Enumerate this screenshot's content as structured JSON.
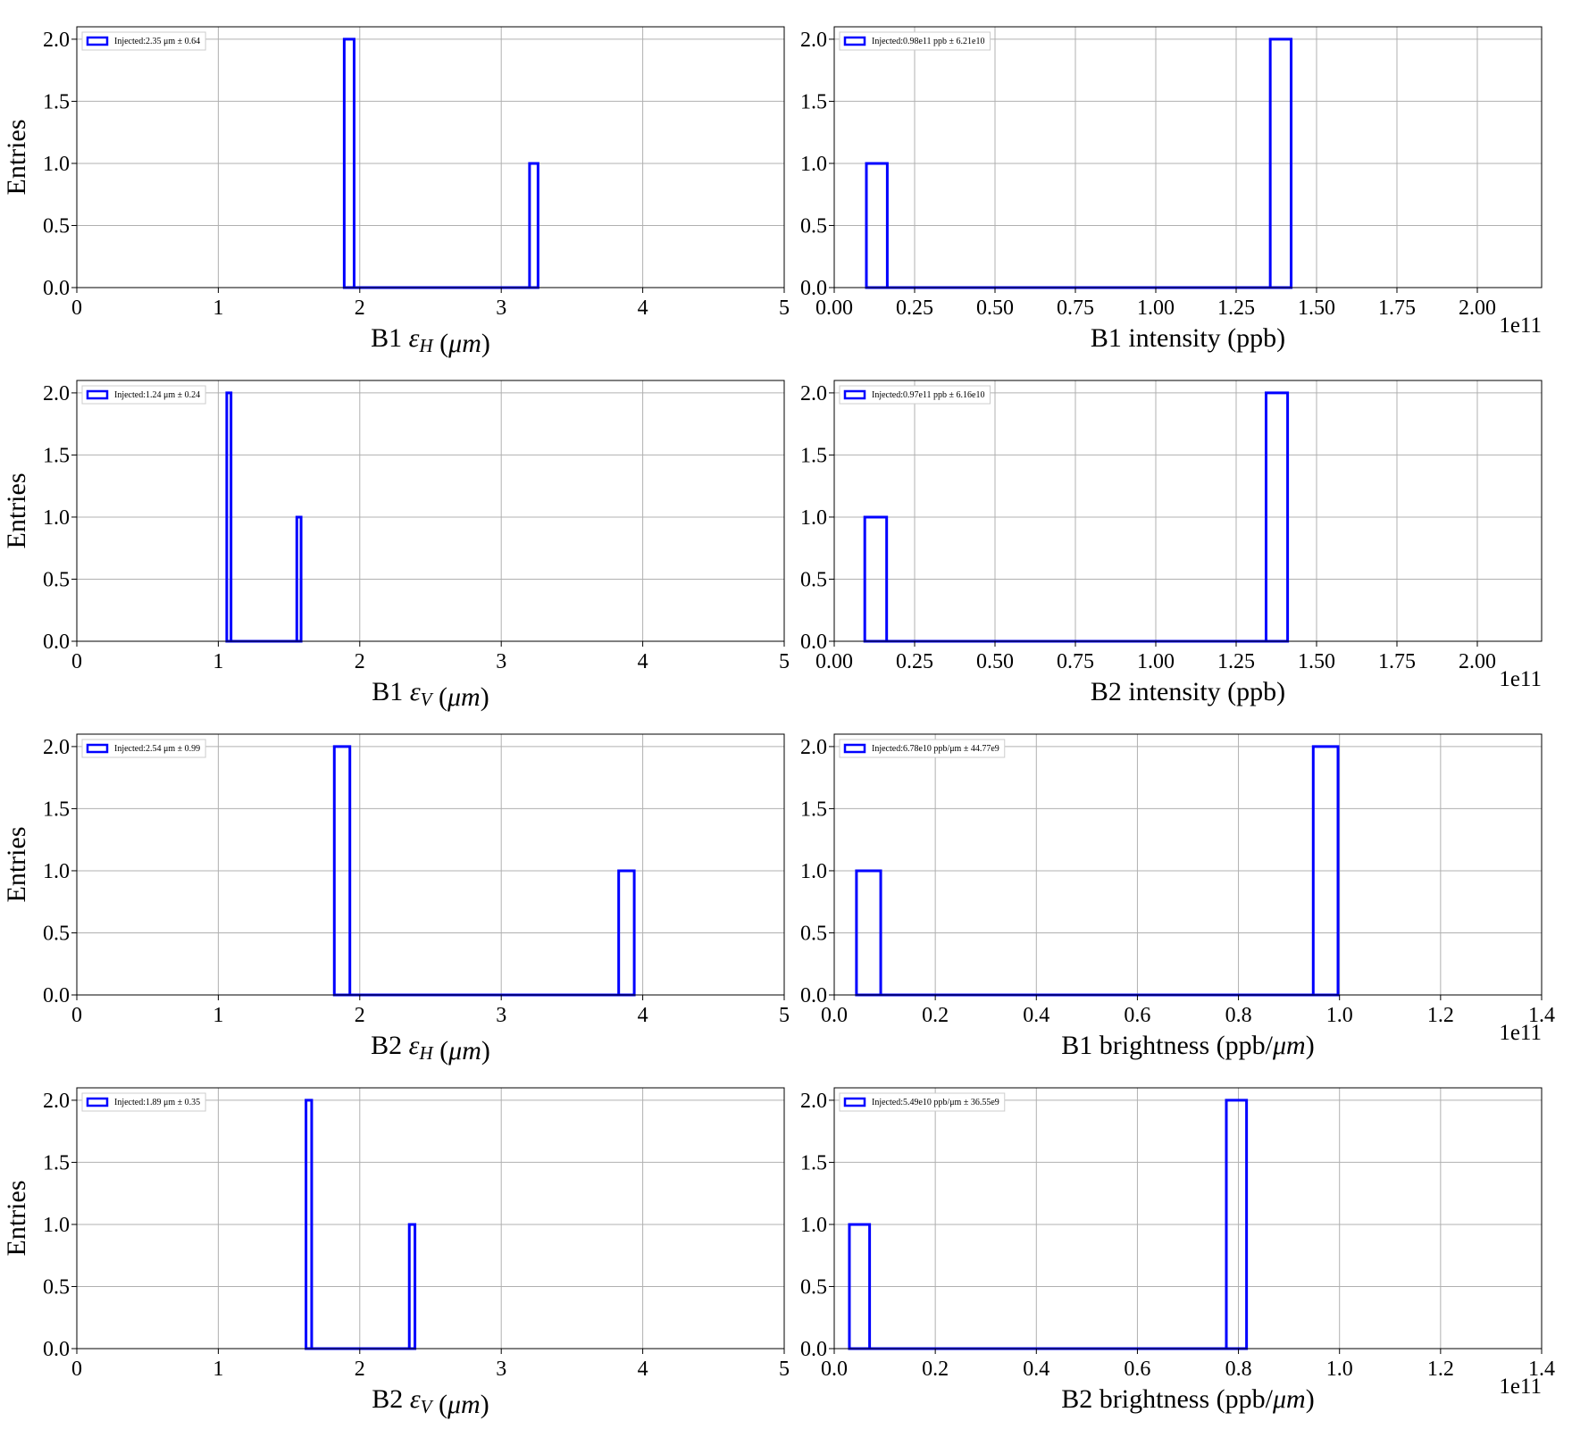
{
  "colors": {
    "series": "#0000ff",
    "grid": "#b0b0b0"
  },
  "chart_data": [
    {
      "type": "histogram",
      "title": "",
      "xlabel": "B1 εH (μm)",
      "xlabel_parts": [
        {
          "t": "B1 "
        },
        {
          "t": "ε",
          "i": true
        },
        {
          "t": "H",
          "i": true,
          "sub": true
        },
        {
          "t": " ("
        },
        {
          "t": "μm",
          "i": true
        },
        {
          "t": ")"
        }
      ],
      "ylabel": "Entries",
      "offset_label": "",
      "xlim": [
        0,
        5
      ],
      "ylim": [
        0,
        2.1
      ],
      "xticks": [
        0,
        1,
        2,
        3,
        4,
        5
      ],
      "xtick_labels": [
        "0",
        "1",
        "2",
        "3",
        "4",
        "5"
      ],
      "yticks": [
        0,
        0.5,
        1,
        1.5,
        2
      ],
      "ytick_labels": [
        "0.0",
        "0.5",
        "1.0",
        "1.5",
        "2.0"
      ],
      "grid": true,
      "legend_position": "upper-left",
      "legend_label": "Injected:2.35 μm ± 0.64",
      "series": [
        {
          "name": "Injected:2.35 μm ± 0.64",
          "bin_edges": [
            1.89,
            1.96,
            3.2,
            3.26
          ],
          "counts": [
            2,
            0,
            1
          ]
        }
      ]
    },
    {
      "type": "histogram",
      "title": "",
      "xlabel": "B1 intensity (ppb)",
      "xlabel_parts": [
        {
          "t": "B1 intensity (ppb)"
        }
      ],
      "ylabel": "",
      "offset_label": "1e11",
      "xlim": [
        0,
        2.2
      ],
      "ylim": [
        0,
        2.1
      ],
      "xticks": [
        0,
        0.25,
        0.5,
        0.75,
        1.0,
        1.25,
        1.5,
        1.75,
        2.0
      ],
      "xtick_labels": [
        "0.00",
        "0.25",
        "0.50",
        "0.75",
        "1.00",
        "1.25",
        "1.50",
        "1.75",
        "2.00"
      ],
      "yticks": [
        0,
        0.5,
        1,
        1.5,
        2
      ],
      "ytick_labels": [
        "0.0",
        "0.5",
        "1.0",
        "1.5",
        "2.0"
      ],
      "grid": true,
      "legend_position": "upper-left",
      "legend_label": "Injected:0.98e11 ppb ± 6.21e10",
      "series": [
        {
          "name": "Injected:0.98e11 ppb ± 6.21e10",
          "bin_edges": [
            0.1,
            0.165,
            1.356,
            1.421
          ],
          "counts": [
            1,
            0,
            2
          ]
        }
      ]
    },
    {
      "type": "histogram",
      "title": "",
      "xlabel": "B1 εV (μm)",
      "xlabel_parts": [
        {
          "t": "B1 "
        },
        {
          "t": "ε",
          "i": true
        },
        {
          "t": "V",
          "i": true,
          "sub": true
        },
        {
          "t": " ("
        },
        {
          "t": "μm",
          "i": true
        },
        {
          "t": ")"
        }
      ],
      "ylabel": "Entries",
      "offset_label": "",
      "xlim": [
        0,
        5
      ],
      "ylim": [
        0,
        2.1
      ],
      "xticks": [
        0,
        1,
        2,
        3,
        4,
        5
      ],
      "xtick_labels": [
        "0",
        "1",
        "2",
        "3",
        "4",
        "5"
      ],
      "yticks": [
        0,
        0.5,
        1,
        1.5,
        2
      ],
      "ytick_labels": [
        "0.0",
        "0.5",
        "1.0",
        "1.5",
        "2.0"
      ],
      "grid": true,
      "legend_position": "upper-left",
      "legend_label": "Injected:1.24 μm ± 0.24",
      "series": [
        {
          "name": "Injected:1.24 μm ± 0.24",
          "bin_edges": [
            1.06,
            1.09,
            1.555,
            1.585
          ],
          "counts": [
            2,
            0,
            1
          ]
        }
      ]
    },
    {
      "type": "histogram",
      "title": "",
      "xlabel": "B2 intensity (ppb)",
      "xlabel_parts": [
        {
          "t": "B2 intensity (ppb)"
        }
      ],
      "ylabel": "",
      "offset_label": "1e11",
      "xlim": [
        0,
        2.2
      ],
      "ylim": [
        0,
        2.1
      ],
      "xticks": [
        0,
        0.25,
        0.5,
        0.75,
        1.0,
        1.25,
        1.5,
        1.75,
        2.0
      ],
      "xtick_labels": [
        "0.00",
        "0.25",
        "0.50",
        "0.75",
        "1.00",
        "1.25",
        "1.50",
        "1.75",
        "2.00"
      ],
      "yticks": [
        0,
        0.5,
        1,
        1.5,
        2
      ],
      "ytick_labels": [
        "0.0",
        "0.5",
        "1.0",
        "1.5",
        "2.0"
      ],
      "grid": true,
      "legend_position": "upper-left",
      "legend_label": "Injected:0.97e11 ppb ± 6.16e10",
      "series": [
        {
          "name": "Injected:0.97e11 ppb ± 6.16e10",
          "bin_edges": [
            0.095,
            0.163,
            1.343,
            1.41
          ],
          "counts": [
            1,
            0,
            2
          ]
        }
      ]
    },
    {
      "type": "histogram",
      "title": "",
      "xlabel": "B2 εH (μm)",
      "xlabel_parts": [
        {
          "t": "B2 "
        },
        {
          "t": "ε",
          "i": true
        },
        {
          "t": "H",
          "i": true,
          "sub": true
        },
        {
          "t": " ("
        },
        {
          "t": "μm",
          "i": true
        },
        {
          "t": ")"
        }
      ],
      "ylabel": "Entries",
      "offset_label": "",
      "xlim": [
        0,
        5
      ],
      "ylim": [
        0,
        2.1
      ],
      "xticks": [
        0,
        1,
        2,
        3,
        4,
        5
      ],
      "xtick_labels": [
        "0",
        "1",
        "2",
        "3",
        "4",
        "5"
      ],
      "yticks": [
        0,
        0.5,
        1,
        1.5,
        2
      ],
      "ytick_labels": [
        "0.0",
        "0.5",
        "1.0",
        "1.5",
        "2.0"
      ],
      "grid": true,
      "legend_position": "upper-left",
      "legend_label": "Injected:2.54 μm ± 0.99",
      "series": [
        {
          "name": "Injected:2.54 μm ± 0.99",
          "bin_edges": [
            1.82,
            1.93,
            3.83,
            3.94
          ],
          "counts": [
            2,
            0,
            1
          ]
        }
      ]
    },
    {
      "type": "histogram",
      "title": "",
      "xlabel": "B1 brightness (ppb/μm)",
      "xlabel_parts": [
        {
          "t": "B1 brightness (ppb/"
        },
        {
          "t": "μm",
          "i": true
        },
        {
          "t": ")"
        }
      ],
      "ylabel": "",
      "offset_label": "1e11",
      "xlim": [
        0,
        1.4
      ],
      "ylim": [
        0,
        2.1
      ],
      "xticks": [
        0,
        0.2,
        0.4,
        0.6,
        0.8,
        1.0,
        1.2,
        1.4
      ],
      "xtick_labels": [
        "0.0",
        "0.2",
        "0.4",
        "0.6",
        "0.8",
        "1.0",
        "1.2",
        "1.4"
      ],
      "yticks": [
        0,
        0.5,
        1,
        1.5,
        2
      ],
      "ytick_labels": [
        "0.0",
        "0.5",
        "1.0",
        "1.5",
        "2.0"
      ],
      "grid": true,
      "legend_position": "upper-left",
      "legend_label": "Injected:6.78e10 ppb/μm ± 44.77e9",
      "series": [
        {
          "name": "Injected:6.78e10 ppb/μm ± 44.77e9",
          "bin_edges": [
            0.044,
            0.092,
            0.948,
            0.997
          ],
          "counts": [
            1,
            0,
            2
          ]
        }
      ]
    },
    {
      "type": "histogram",
      "title": "",
      "xlabel": "B2 εV (μm)",
      "xlabel_parts": [
        {
          "t": "B2 "
        },
        {
          "t": "ε",
          "i": true
        },
        {
          "t": "V",
          "i": true,
          "sub": true
        },
        {
          "t": " ("
        },
        {
          "t": "μm",
          "i": true
        },
        {
          "t": ")"
        }
      ],
      "ylabel": "Entries",
      "offset_label": "",
      "xlim": [
        0,
        5
      ],
      "ylim": [
        0,
        2.1
      ],
      "xticks": [
        0,
        1,
        2,
        3,
        4,
        5
      ],
      "xtick_labels": [
        "0",
        "1",
        "2",
        "3",
        "4",
        "5"
      ],
      "yticks": [
        0,
        0.5,
        1,
        1.5,
        2
      ],
      "ytick_labels": [
        "0.0",
        "0.5",
        "1.0",
        "1.5",
        "2.0"
      ],
      "grid": true,
      "legend_position": "upper-left",
      "legend_label": "Injected:1.89 μm ± 0.35",
      "series": [
        {
          "name": "Injected:1.89 μm ± 0.35",
          "bin_edges": [
            1.62,
            1.66,
            2.35,
            2.39
          ],
          "counts": [
            2,
            0,
            1
          ]
        }
      ]
    },
    {
      "type": "histogram",
      "title": "",
      "xlabel": "B2 brightness (ppb/μm)",
      "xlabel_parts": [
        {
          "t": "B2 brightness (ppb/"
        },
        {
          "t": "μm",
          "i": true
        },
        {
          "t": ")"
        }
      ],
      "ylabel": "",
      "offset_label": "1e11",
      "xlim": [
        0,
        1.4
      ],
      "ylim": [
        0,
        2.1
      ],
      "xticks": [
        0,
        0.2,
        0.4,
        0.6,
        0.8,
        1.0,
        1.2,
        1.4
      ],
      "xtick_labels": [
        "0.0",
        "0.2",
        "0.4",
        "0.6",
        "0.8",
        "1.0",
        "1.2",
        "1.4"
      ],
      "yticks": [
        0,
        0.5,
        1,
        1.5,
        2
      ],
      "ytick_labels": [
        "0.0",
        "0.5",
        "1.0",
        "1.5",
        "2.0"
      ],
      "grid": true,
      "legend_position": "upper-left",
      "legend_label": "Injected:5.49e10 ppb/μm ± 36.55e9",
      "series": [
        {
          "name": "Injected:5.49e10 ppb/μm ± 36.55e9",
          "bin_edges": [
            0.03,
            0.07,
            0.776,
            0.816
          ],
          "counts": [
            1,
            0,
            2
          ]
        }
      ]
    }
  ]
}
